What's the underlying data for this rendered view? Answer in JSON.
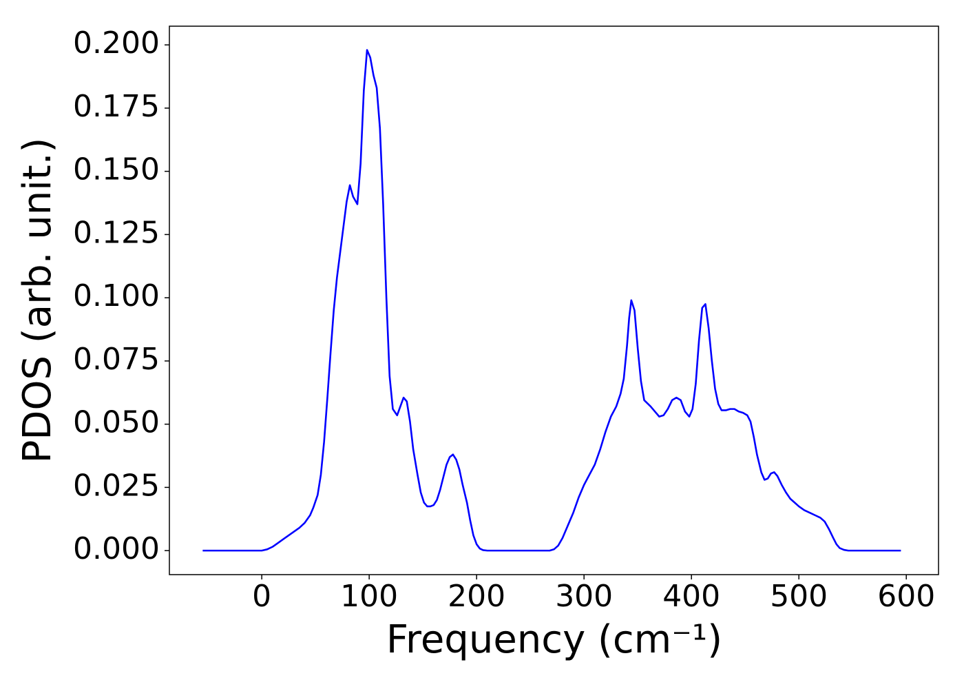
{
  "chart_data": {
    "type": "line",
    "x_label": "Frequency (cm⁻¹)",
    "y_label": "PDOS (arb. unit.)",
    "xlim": [
      -86,
      630
    ],
    "ylim": [
      -0.0095,
      0.2074
    ],
    "xticks": [
      0,
      100,
      200,
      300,
      400,
      500,
      600
    ],
    "yticks": [
      {
        "value": 0,
        "label": "0.000"
      },
      {
        "value": 0.025,
        "label": "0.025"
      },
      {
        "value": 0.05,
        "label": "0.050"
      },
      {
        "value": 0.075,
        "label": "0.075"
      },
      {
        "value": 0.1,
        "label": "0.100"
      },
      {
        "value": 0.125,
        "label": "0.125"
      },
      {
        "value": 0.15,
        "label": "0.150"
      },
      {
        "value": 0.175,
        "label": "0.175"
      },
      {
        "value": 0.2,
        "label": "0.200"
      }
    ],
    "grid": false,
    "series": [
      {
        "color": "#0000ff",
        "x": [
          -55,
          -50,
          -45,
          -40,
          -35,
          -30,
          -25,
          -20,
          -15,
          -10,
          -5,
          0,
          5,
          10,
          15,
          20,
          25,
          30,
          35,
          40,
          45,
          48,
          52,
          55,
          58,
          61,
          64,
          67,
          70,
          73,
          76,
          79,
          82,
          85,
          89,
          92,
          95,
          98,
          101,
          104,
          107,
          110,
          113,
          116,
          119,
          122,
          126,
          129,
          132,
          135,
          138,
          141,
          145,
          148,
          151,
          154,
          157,
          160,
          163,
          166,
          169,
          172,
          175,
          178,
          181,
          184,
          187,
          191,
          194,
          197,
          200,
          203,
          206,
          210,
          215,
          220,
          225,
          230,
          235,
          240,
          245,
          250,
          255,
          260,
          265,
          268,
          272,
          276,
          280,
          285,
          290,
          295,
          300,
          305,
          310,
          315,
          320,
          325,
          330,
          334,
          337,
          340,
          342,
          344,
          347,
          350,
          353,
          356,
          362,
          366,
          370,
          374,
          378,
          382,
          386,
          390,
          394,
          398,
          401,
          404,
          407,
          410,
          413,
          416,
          419,
          422,
          425,
          428,
          432,
          436,
          440,
          444,
          448,
          452,
          455,
          458,
          461,
          465,
          468,
          471,
          474,
          477,
          480,
          484,
          488,
          492,
          496,
          500,
          505,
          510,
          515,
          520,
          524,
          528,
          532,
          535,
          538,
          542,
          546,
          550,
          555,
          560,
          565,
          570,
          575,
          580,
          585,
          590,
          595
        ],
        "values": [
          0,
          0,
          0,
          0,
          0,
          0,
          0,
          0,
          0,
          0,
          0,
          0,
          0.0005,
          0.0015,
          0.003,
          0.0045,
          0.006,
          0.0075,
          0.009,
          0.011,
          0.014,
          0.017,
          0.022,
          0.03,
          0.043,
          0.06,
          0.078,
          0.095,
          0.108,
          0.118,
          0.128,
          0.138,
          0.1445,
          0.14,
          0.137,
          0.153,
          0.182,
          0.198,
          0.195,
          0.188,
          0.183,
          0.167,
          0.137,
          0.1,
          0.069,
          0.056,
          0.0535,
          0.057,
          0.0605,
          0.059,
          0.051,
          0.04,
          0.03,
          0.023,
          0.019,
          0.0175,
          0.0175,
          0.018,
          0.02,
          0.024,
          0.029,
          0.034,
          0.037,
          0.038,
          0.036,
          0.032,
          0.026,
          0.019,
          0.012,
          0.006,
          0.0025,
          0.0008,
          0.0002,
          0,
          0,
          0,
          0,
          0,
          0,
          0,
          0,
          0,
          0,
          0,
          0,
          0,
          0.0005,
          0.002,
          0.005,
          0.01,
          0.015,
          0.021,
          0.026,
          0.03,
          0.034,
          0.04,
          0.047,
          0.053,
          0.057,
          0.062,
          0.068,
          0.081,
          0.092,
          0.099,
          0.095,
          0.08,
          0.067,
          0.0595,
          0.057,
          0.055,
          0.053,
          0.0535,
          0.056,
          0.0595,
          0.0605,
          0.0595,
          0.055,
          0.053,
          0.056,
          0.066,
          0.083,
          0.096,
          0.0975,
          0.088,
          0.075,
          0.064,
          0.058,
          0.0555,
          0.0555,
          0.056,
          0.056,
          0.055,
          0.0545,
          0.0535,
          0.051,
          0.045,
          0.038,
          0.031,
          0.028,
          0.0285,
          0.0305,
          0.031,
          0.0295,
          0.026,
          0.023,
          0.0205,
          0.019,
          0.0175,
          0.016,
          0.015,
          0.014,
          0.013,
          0.0115,
          0.0085,
          0.005,
          0.0025,
          0.001,
          0.0003,
          0,
          0,
          0,
          0,
          0,
          0,
          0,
          0,
          0,
          0,
          0
        ]
      }
    ]
  }
}
